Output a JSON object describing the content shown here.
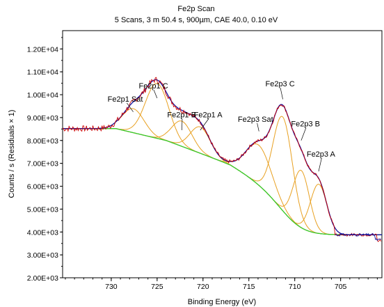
{
  "chart_data": {
    "type": "line",
    "title": "Fe2p Scan",
    "subtitle": "5 Scans,  3 m 50.4 s,  900µm,  CAE 40.0,  0.10 eV",
    "xlabel": "Binding Energy (eV)",
    "ylabel": "Counts / s  (Residuals × 1)",
    "xlim": [
      735.3,
      700.5
    ],
    "ylim": [
      2000,
      12800
    ],
    "x_reversed": true,
    "grid": false,
    "x_ticks": [
      730,
      725,
      720,
      715,
      710,
      705
    ],
    "x_tick_labels": [
      "730",
      "725",
      "720",
      "715",
      "710",
      "705"
    ],
    "y_ticks": [
      2000,
      3000,
      4000,
      5000,
      6000,
      7000,
      8000,
      9000,
      10000,
      11000,
      12000
    ],
    "y_tick_labels": [
      "2.00E+03",
      "3.00E+03",
      "4.00E+03",
      "5.00E+03",
      "6.00E+03",
      "7.00E+03",
      "8.00E+03",
      "9.00E+03",
      "1.00E+04",
      "1.10E+04",
      "1.20E+04"
    ],
    "background": {
      "color": "#33cc33"
    },
    "peaks": [
      {
        "label": "Fe2p1 Sat",
        "center": 727.6,
        "height": 1050,
        "width": 2.8,
        "label_x": 730.4,
        "label_y": 9700,
        "anchor_y": 9250,
        "color": "#e8a020"
      },
      {
        "label": "Fe2p1 C",
        "center": 725.0,
        "height": 2400,
        "width": 3.0,
        "label_x": 727.0,
        "label_y": 10270,
        "anchor_y": 9850,
        "color": "#e8a020"
      },
      {
        "label": "Fe2p1 B",
        "center": 722.3,
        "height": 1100,
        "width": 2.6,
        "label_x": 723.9,
        "label_y": 9020,
        "anchor_y": 8450,
        "color": "#e8a020"
      },
      {
        "label": "Fe2p1 A",
        "center": 720.3,
        "height": 1150,
        "width": 2.6,
        "label_x": 721.0,
        "label_y": 9020,
        "anchor_y": 8450,
        "color": "#e8a020"
      },
      {
        "label": "Fe2p3 Sat",
        "center": 713.9,
        "height": 1750,
        "width": 3.3,
        "label_x": 716.2,
        "label_y": 8820,
        "anchor_y": 8400,
        "color": "#e8a020"
      },
      {
        "label": "Fe2p3 C",
        "center": 711.3,
        "height": 4100,
        "width": 2.5,
        "label_x": 713.2,
        "label_y": 10360,
        "anchor_y": 9800,
        "color": "#e8a020"
      },
      {
        "label": "Fe2p3 B",
        "center": 709.3,
        "height": 2500,
        "width": 2.1,
        "label_x": 710.4,
        "label_y": 8620,
        "anchor_y": 8000,
        "color": "#e8a020"
      },
      {
        "label": "Fe2p3 A",
        "center": 707.4,
        "height": 2150,
        "width": 2.1,
        "label_x": 708.7,
        "label_y": 7300,
        "anchor_y": 6650,
        "color": "#e8a020"
      }
    ],
    "series": [
      {
        "name": "raw",
        "color": "#cc0000",
        "description_points": "noisy measured spectrum"
      },
      {
        "name": "envelope",
        "color": "#1010a0"
      },
      {
        "name": "background",
        "color": "#33cc33"
      },
      {
        "name": "components",
        "color": "#e8a020"
      }
    ],
    "raw_tail": [
      [
        706.0,
        4300
      ],
      [
        705.6,
        3900
      ],
      [
        704.5,
        3880
      ],
      [
        703.0,
        3850
      ],
      [
        701.5,
        3820
      ],
      [
        700.6,
        3600
      ]
    ]
  }
}
